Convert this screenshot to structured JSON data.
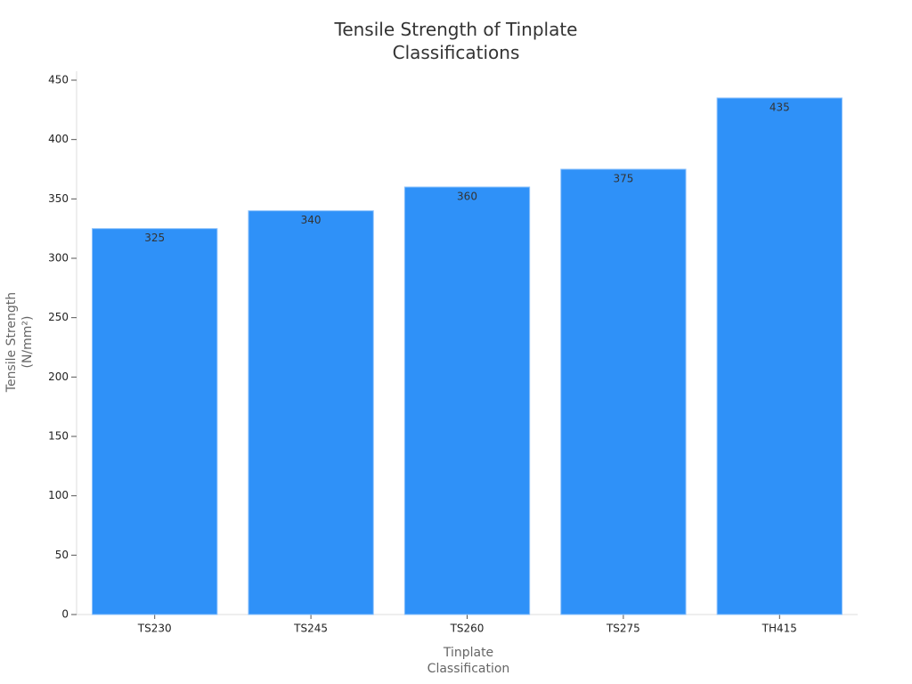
{
  "chart_data": {
    "type": "bar",
    "title": "Tensile Strength of Tinplate Classifications",
    "x_label": "Tinplate Classification",
    "y_label": "Tensile Strength (N/mm²)",
    "categories": [
      "TS230",
      "TS245",
      "TS260",
      "TS275",
      "TH415"
    ],
    "values": [
      325,
      340,
      360,
      375,
      435
    ],
    "color": "#2f91f8",
    "ylim": [
      0,
      457.5
    ],
    "yticks": [
      0,
      50,
      100,
      150,
      200,
      250,
      300,
      350,
      400,
      450
    ],
    "grid": false
  }
}
